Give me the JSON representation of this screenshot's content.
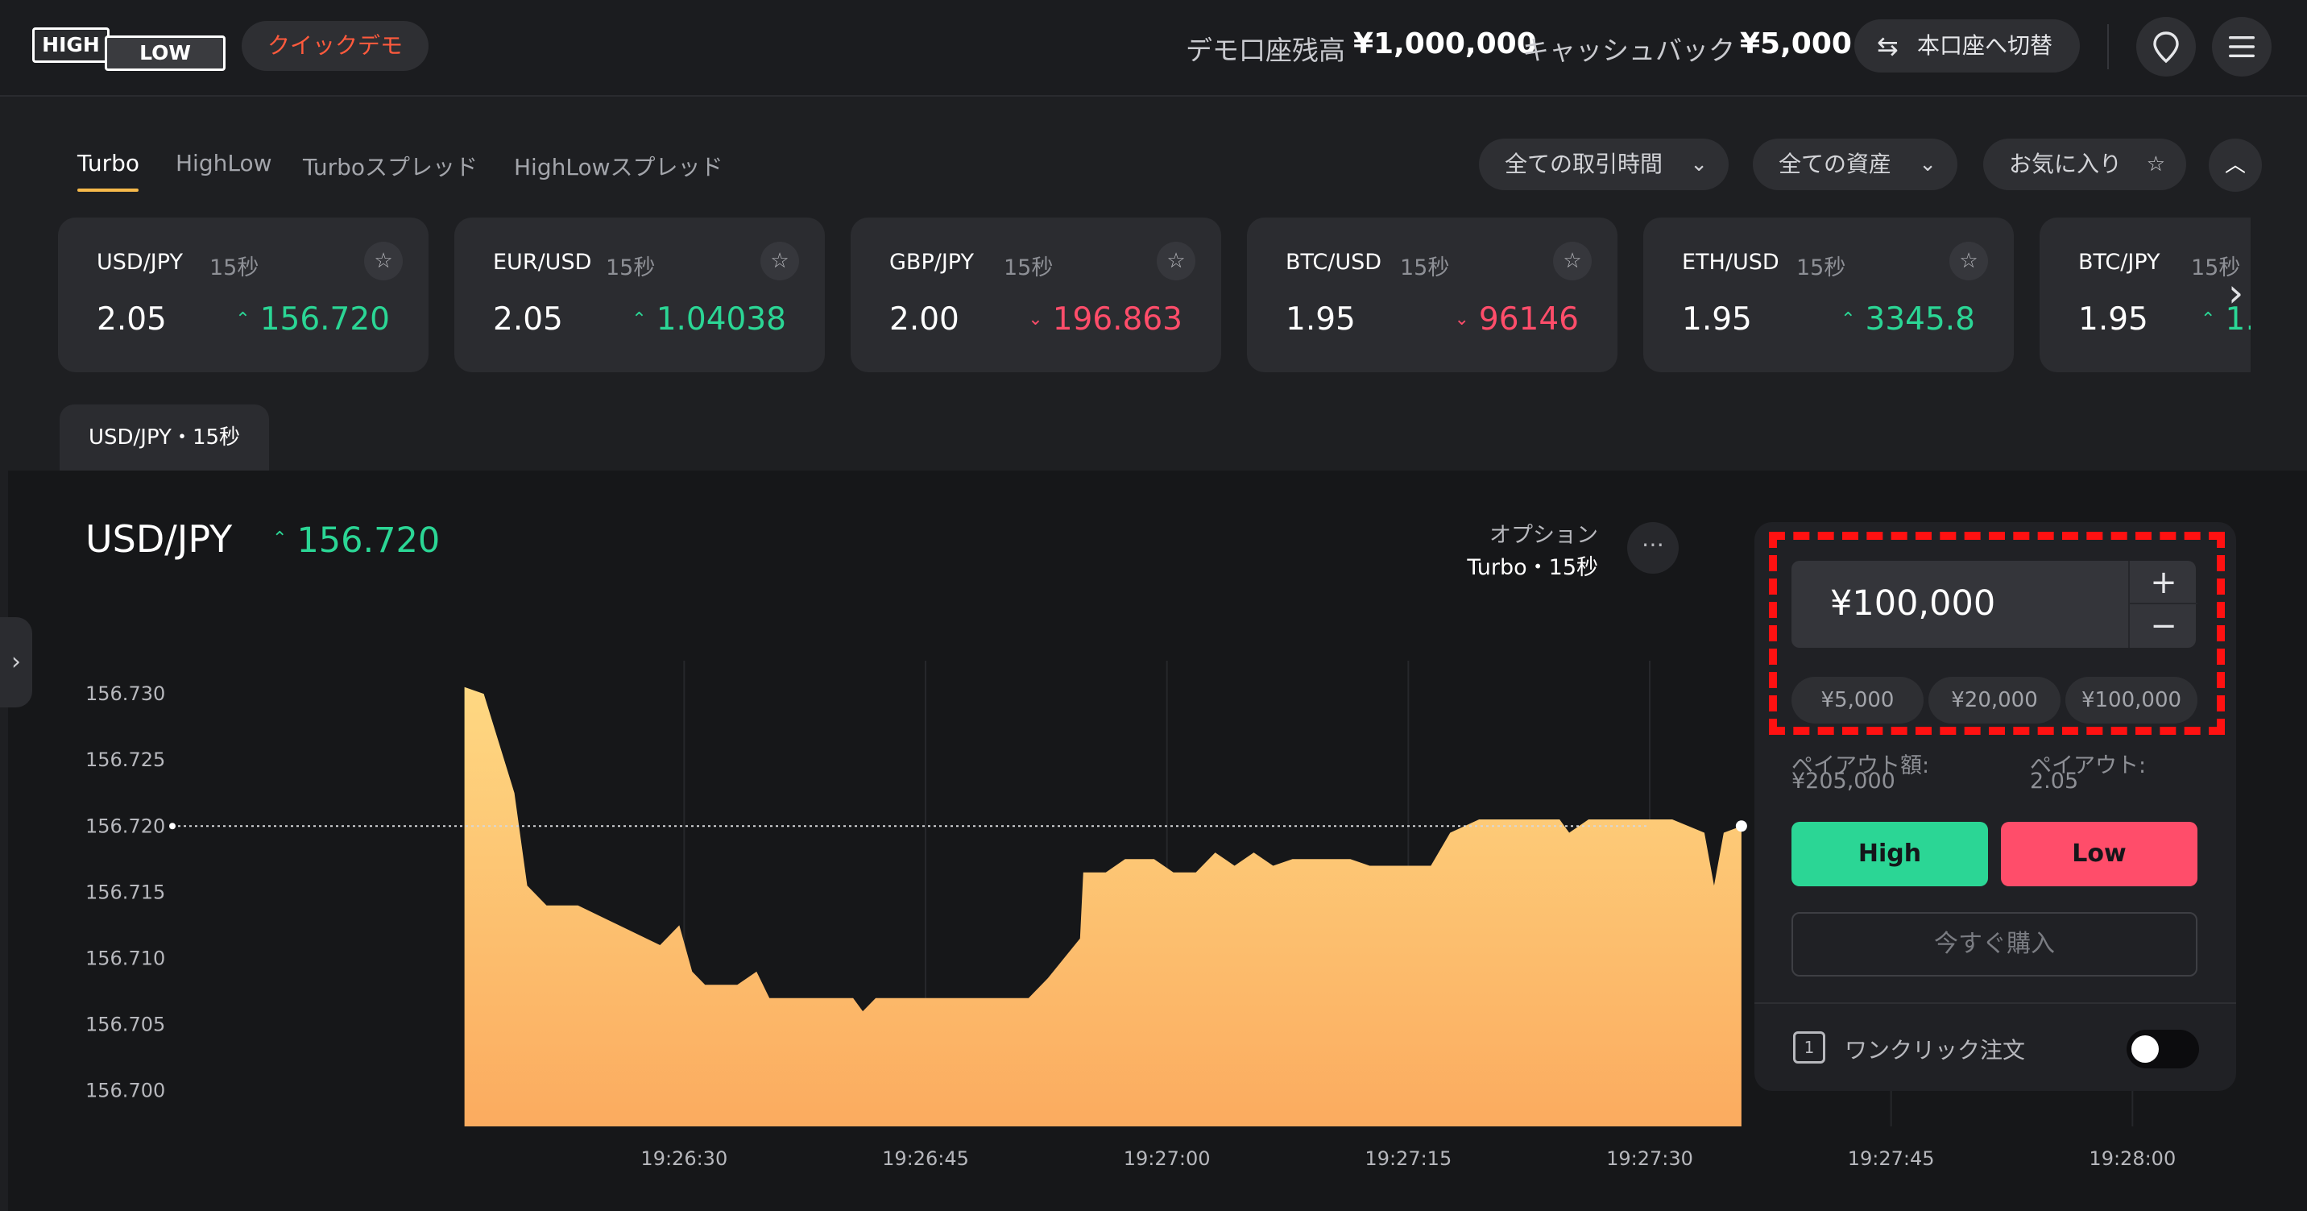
{
  "header": {
    "logo": {
      "high": "HIGH",
      "low": "LOW"
    },
    "demo_badge": "クイックデモ",
    "balance_label": "デモ口座残高",
    "balance_value": "¥1,000,000",
    "cashback_label": "キャッシュバック",
    "cashback_value": "¥5,000",
    "switch_label": "本口座へ切替",
    "switch_icon": "swap-arrows-icon",
    "location_icon": "map-pin-icon",
    "menu_icon": "hamburger-menu-icon"
  },
  "tabs": [
    {
      "label": "Turbo",
      "active": true
    },
    {
      "label": "HighLow",
      "active": false
    },
    {
      "label": "Turboスプレッド",
      "active": false
    },
    {
      "label": "HighLowスプレッド",
      "active": false
    }
  ],
  "filters": {
    "time": "全ての取引時間",
    "assets": "全ての資産",
    "favorites": "お気に入り",
    "collapse_icon": "chevron-up-icon"
  },
  "assets": [
    {
      "symbol": "USD/JPY",
      "duration": "15秒",
      "payout": "2.05",
      "price": "156.720",
      "direction": "up"
    },
    {
      "symbol": "EUR/USD",
      "duration": "15秒",
      "payout": "2.05",
      "price": "1.04038",
      "direction": "up"
    },
    {
      "symbol": "GBP/JPY",
      "duration": "15秒",
      "payout": "2.00",
      "price": "196.863",
      "direction": "down"
    },
    {
      "symbol": "BTC/USD",
      "duration": "15秒",
      "payout": "1.95",
      "price": "96146",
      "direction": "down"
    },
    {
      "symbol": "ETH/USD",
      "duration": "15秒",
      "payout": "1.95",
      "price": "3345.8",
      "direction": "up"
    },
    {
      "symbol": "BTC/JPY",
      "duration": "15秒",
      "payout": "1.95",
      "price": "1…",
      "direction": "up"
    }
  ],
  "chart_tab": "USD/JPY・15秒",
  "chart_header": {
    "pair": "USD/JPY",
    "price": "156.720",
    "direction": "up",
    "option_label": "オプション",
    "option_value": "Turbo・15秒",
    "more_icon": "ellipsis-icon"
  },
  "colors": {
    "up": "#2bd695",
    "down": "#ff4d6a",
    "accent": "#f6b94b",
    "high": "#2bd695",
    "low": "#ff4d6a",
    "highlight": "#ff1111"
  },
  "chart_data": {
    "type": "area",
    "x_ticks": [
      "19:26:30",
      "19:26:45",
      "19:27:00",
      "19:27:15",
      "19:27:30",
      "19:27:45",
      "19:28:00"
    ],
    "y_ticks": [
      "156.730",
      "156.725",
      "156.720",
      "156.715",
      "156.710",
      "156.705",
      "156.700"
    ],
    "ylim": [
      156.6973,
      156.7325
    ],
    "x_range_seconds": [
      0,
      90
    ],
    "current_price": 156.72,
    "series": [
      {
        "points": [
          [
            16.35,
            156.7305
          ],
          [
            17.55,
            156.73
          ],
          [
            19.45,
            156.7225
          ],
          [
            20.25,
            156.7155
          ],
          [
            21.45,
            156.714
          ],
          [
            23.4,
            156.714
          ],
          [
            28.5,
            156.711
          ],
          [
            29.7,
            156.7125
          ],
          [
            30.5,
            156.709
          ],
          [
            31.3,
            156.708
          ],
          [
            33.3,
            156.708
          ],
          [
            34.5,
            156.709
          ],
          [
            35.3,
            156.707
          ],
          [
            40.5,
            156.707
          ],
          [
            41.1,
            156.706
          ],
          [
            41.9,
            156.707
          ],
          [
            51.4,
            156.707
          ],
          [
            52.6,
            156.7085
          ],
          [
            54.6,
            156.7115
          ],
          [
            54.8,
            156.7165
          ],
          [
            56.2,
            156.7165
          ],
          [
            57.4,
            156.7175
          ],
          [
            59.2,
            156.7175
          ],
          [
            60.4,
            156.7165
          ],
          [
            61.8,
            156.7165
          ],
          [
            63.0,
            156.718
          ],
          [
            64.2,
            156.717
          ],
          [
            65.4,
            156.718
          ],
          [
            66.6,
            156.717
          ],
          [
            67.8,
            156.7175
          ],
          [
            71.4,
            156.7175
          ],
          [
            72.6,
            156.717
          ],
          [
            76.4,
            156.717
          ],
          [
            77.6,
            156.7195
          ],
          [
            79.4,
            156.7205
          ],
          [
            84.4,
            156.7205
          ],
          [
            85.0,
            156.7195
          ],
          [
            86.2,
            156.7205
          ],
          [
            91.4,
            156.7205
          ],
          [
            93.4,
            156.7195
          ],
          [
            94.0,
            156.7155
          ],
          [
            94.6,
            156.7195
          ],
          [
            95.7,
            156.72
          ]
        ]
      }
    ]
  },
  "trade": {
    "amount": "¥100,000",
    "plus": "+",
    "minus": "−",
    "quick_amounts": [
      "¥5,000",
      "¥20,000",
      "¥100,000"
    ],
    "payout_amount_label": "ペイアウト額:",
    "payout_amount_value": "¥205,000",
    "payout_label": "ペイアウト:",
    "payout_value": "2.05",
    "high_label": "High",
    "low_label": "Low",
    "buy_label": "今すぐ購入",
    "oneclick_label": "ワンクリック注文",
    "oneclick_icon_text": "1",
    "oneclick_enabled": false
  }
}
